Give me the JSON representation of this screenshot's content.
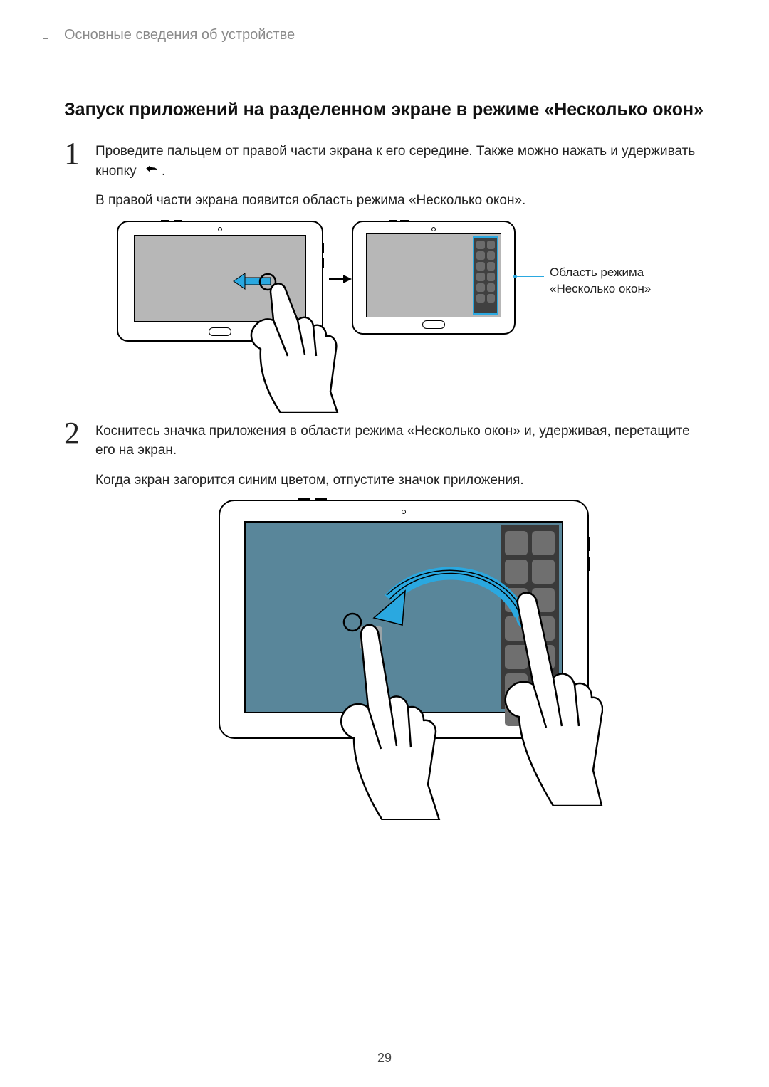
{
  "header": {
    "breadcrumb": "Основные сведения об устройстве"
  },
  "section": {
    "title": "Запуск приложений на разделенном экране в режиме «Несколько окон»"
  },
  "steps": {
    "s1": {
      "num": "1",
      "p1a": "Проведите пальцем от правой части экрана к его середине. Также можно нажать и удерживать кнопку ",
      "p1b": ".",
      "p2": "В правой части экрана появится область режима «Несколько окон»."
    },
    "s2": {
      "num": "2",
      "p1": "Коснитесь значка приложения в области режима «Несколько окон» и, удерживая, перетащите его на экран.",
      "p2": "Когда экран загорится синим цветом, отпустите значок приложения."
    }
  },
  "callout": {
    "line1": "Область режима",
    "line2": "«Несколько окон»"
  },
  "figure1": {
    "type": "infographic",
    "tray_border_color": "#2aa8e0",
    "tray_bg": "#404040",
    "app_color": "#6b6b6b",
    "screen_bg": "#b7b7b7",
    "arrow_fill": "#2aa8e0",
    "tray_rows": 6,
    "tray_cols": 2
  },
  "figure2": {
    "type": "infographic",
    "screen_bg": "#59869a",
    "tray_bg": "#3a3a3a",
    "app_color": "#6f6f6f",
    "ghost_color": "#9aa3a7",
    "arrow_color": "#2aa8e0",
    "ring_color": "#2aa8e0",
    "tray_rows": 7,
    "tray_cols": 2
  },
  "page": {
    "number": "29"
  }
}
